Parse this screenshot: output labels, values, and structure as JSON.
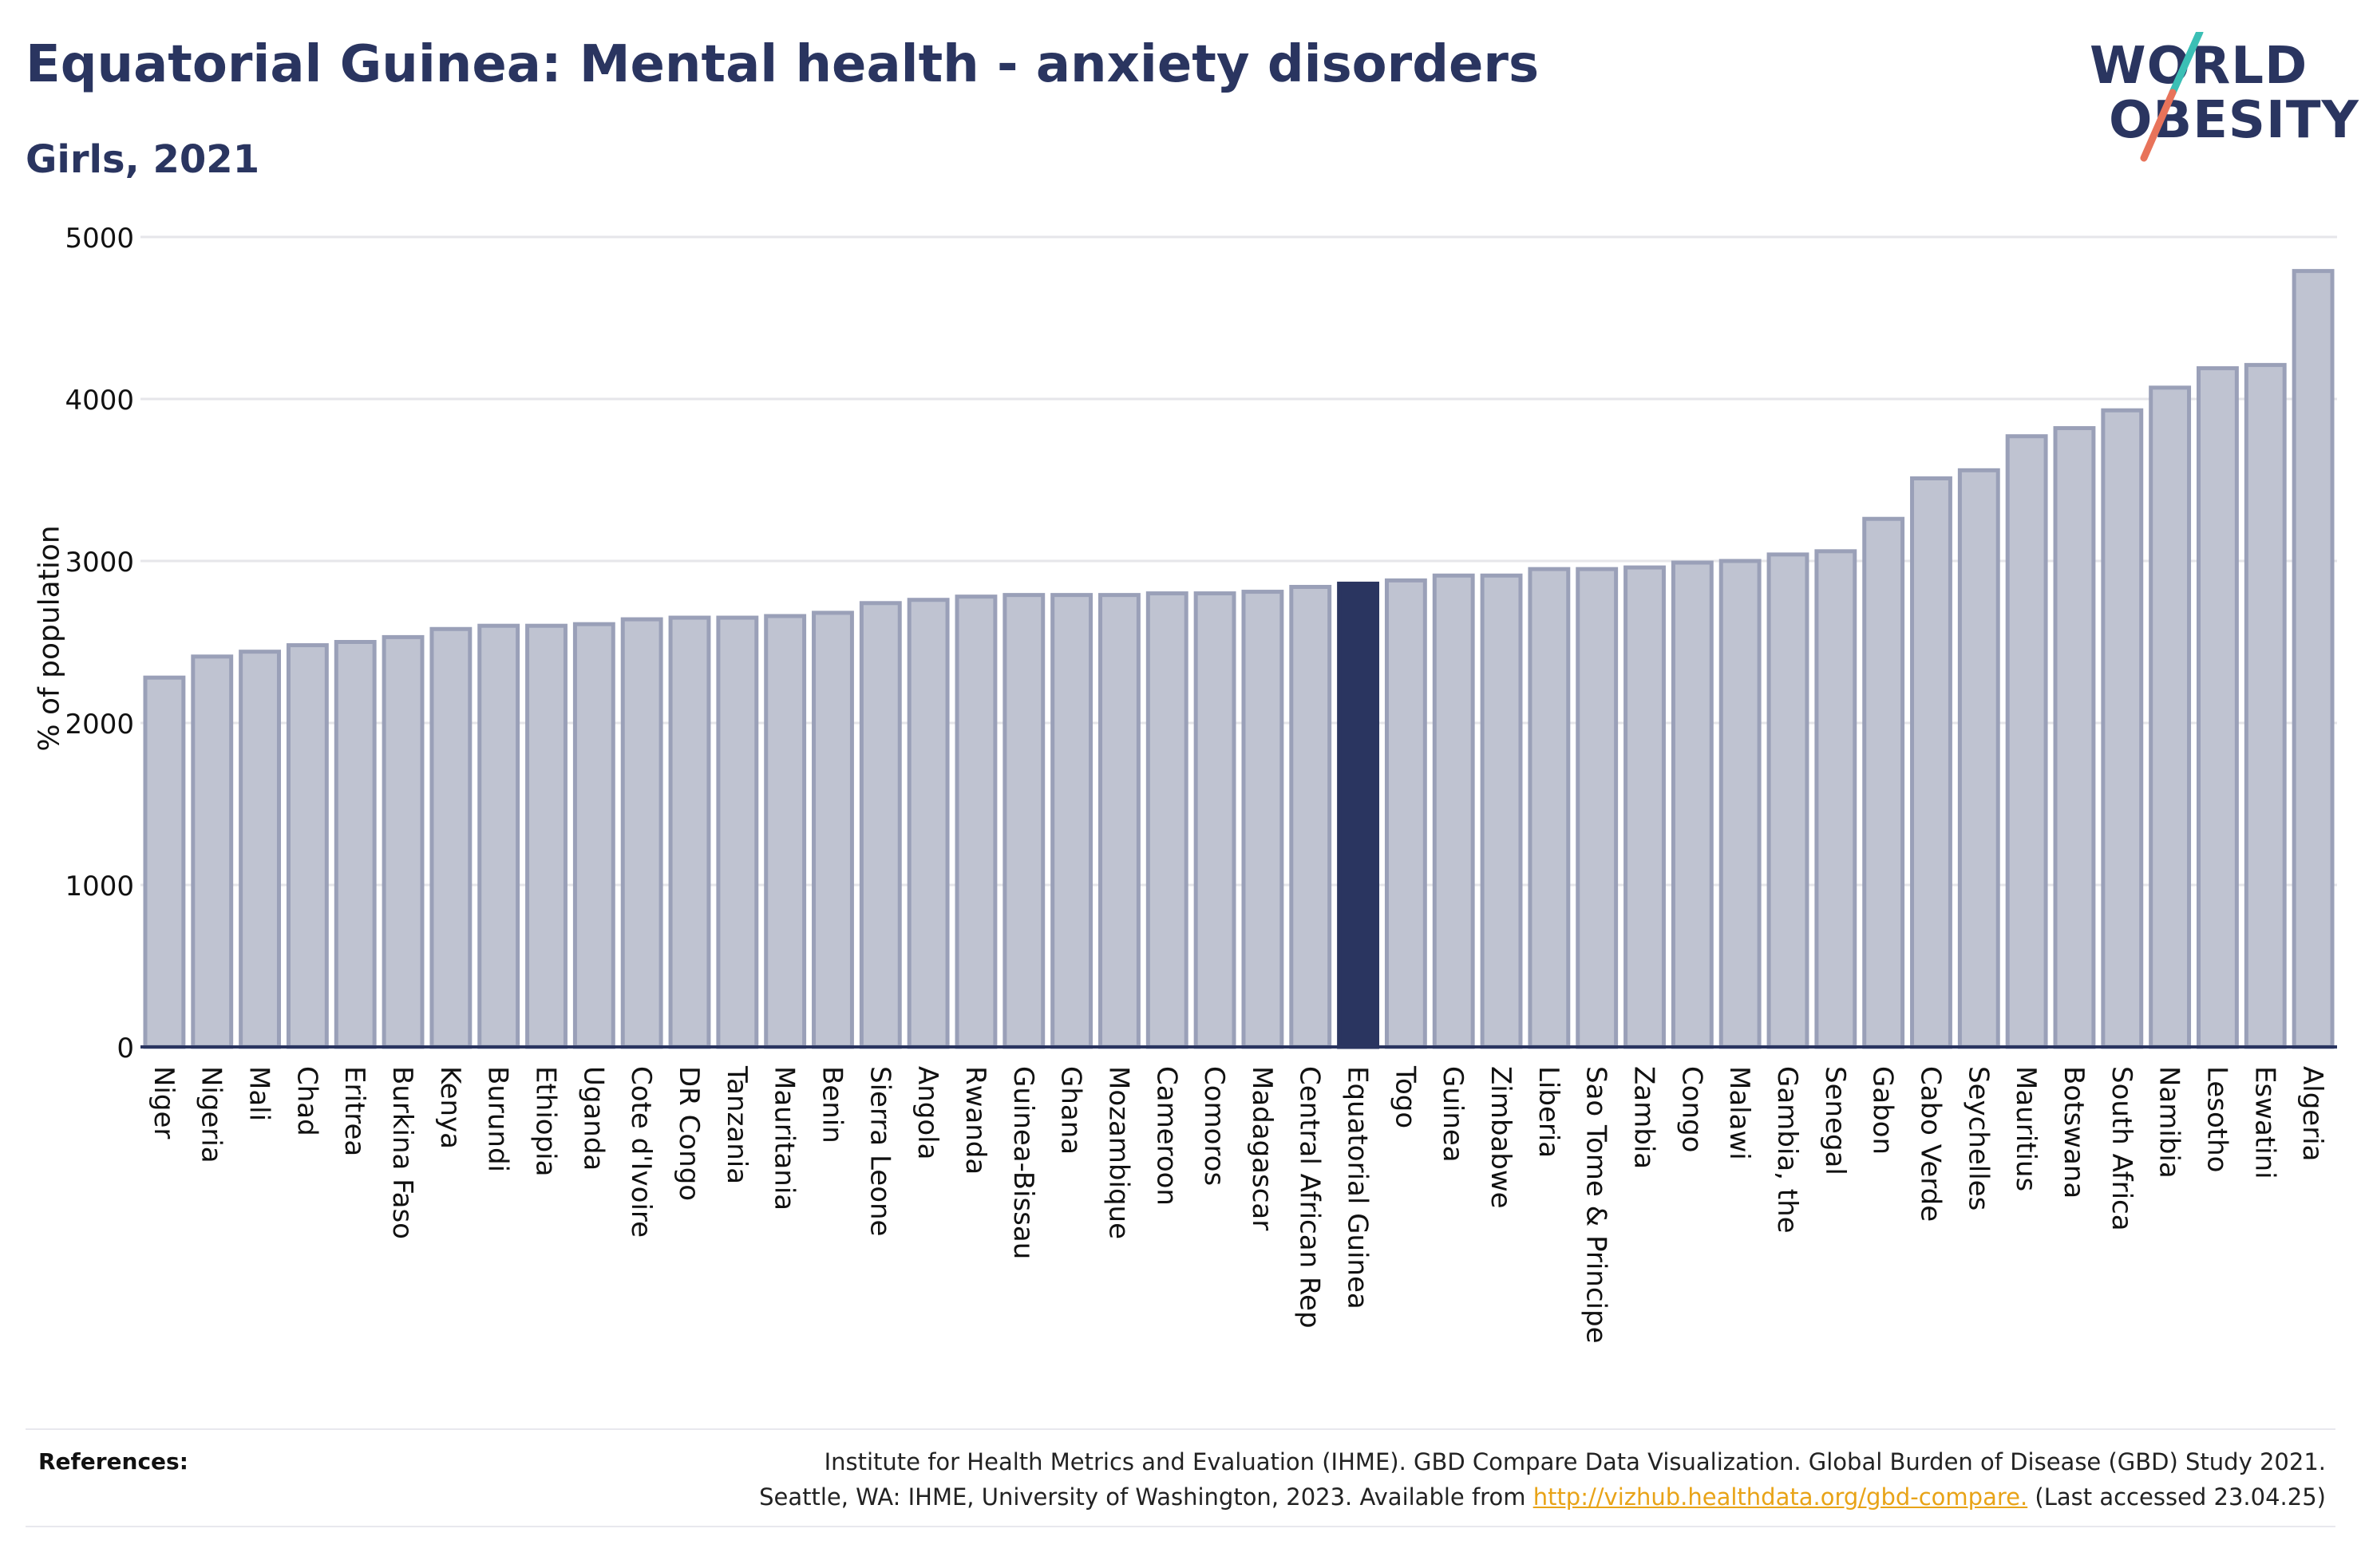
{
  "title": "Equatorial Guinea: Mental health - anxiety disorders",
  "subtitle": "Girls, 2021",
  "logo": {
    "line1": "WORLD",
    "line2": "OBESITY"
  },
  "references": {
    "label": "References:",
    "line1": "Institute for Health Metrics and Evaluation (IHME). GBD Compare Data Visualization. Global Burden of Disease (GBD) Study 2021.",
    "line2_prefix": "Seattle, WA: IHME, University of Washington, 2023. Available from ",
    "link": "http://vizhub.healthdata.org/gbd-compare.",
    "line2_suffix": " (Last accessed 23.04.25)"
  },
  "colors": {
    "highlight": "#2a3560",
    "bar": "#bfc3d1",
    "bar_edge": "#9aa0b8",
    "accent_teal": "#3bbfb5",
    "accent_coral": "#e8735a",
    "link": "#e8a317"
  },
  "chart_data": {
    "type": "bar",
    "title": "Equatorial Guinea: Mental health - anxiety disorders",
    "subtitle": "Girls, 2021",
    "xlabel": "",
    "ylabel": "% of population",
    "ylim": [
      0,
      5000
    ],
    "yticks": [
      0,
      1000,
      2000,
      3000,
      4000,
      5000
    ],
    "grid": true,
    "highlight": "Equatorial Guinea",
    "categories": [
      "Niger",
      "Nigeria",
      "Mali",
      "Chad",
      "Eritrea",
      "Burkina Faso",
      "Kenya",
      "Burundi",
      "Ethiopia",
      "Uganda",
      "Cote d'Ivoire",
      "DR Congo",
      "Tanzania",
      "Mauritania",
      "Benin",
      "Sierra Leone",
      "Angola",
      "Rwanda",
      "Guinea-Bissau",
      "Ghana",
      "Mozambique",
      "Cameroon",
      "Comoros",
      "Madagascar",
      "Central African Rep",
      "Equatorial Guinea",
      "Togo",
      "Guinea",
      "Zimbabwe",
      "Liberia",
      "Sao Tome & Principe",
      "Zambia",
      "Congo",
      "Malawi",
      "Gambia, the",
      "Senegal",
      "Gabon",
      "Cabo Verde",
      "Seychelles",
      "Mauritius",
      "Botswana",
      "South Africa",
      "Namibia",
      "Lesotho",
      "Eswatini",
      "Algeria"
    ],
    "values": [
      2280,
      2410,
      2440,
      2480,
      2500,
      2530,
      2580,
      2600,
      2600,
      2610,
      2640,
      2650,
      2650,
      2660,
      2680,
      2740,
      2760,
      2780,
      2790,
      2790,
      2790,
      2800,
      2800,
      2810,
      2840,
      2860,
      2880,
      2910,
      2910,
      2950,
      2950,
      2960,
      2990,
      3000,
      3040,
      3060,
      3260,
      3510,
      3560,
      3770,
      3820,
      3930,
      4070,
      4190,
      4210,
      4790
    ]
  }
}
